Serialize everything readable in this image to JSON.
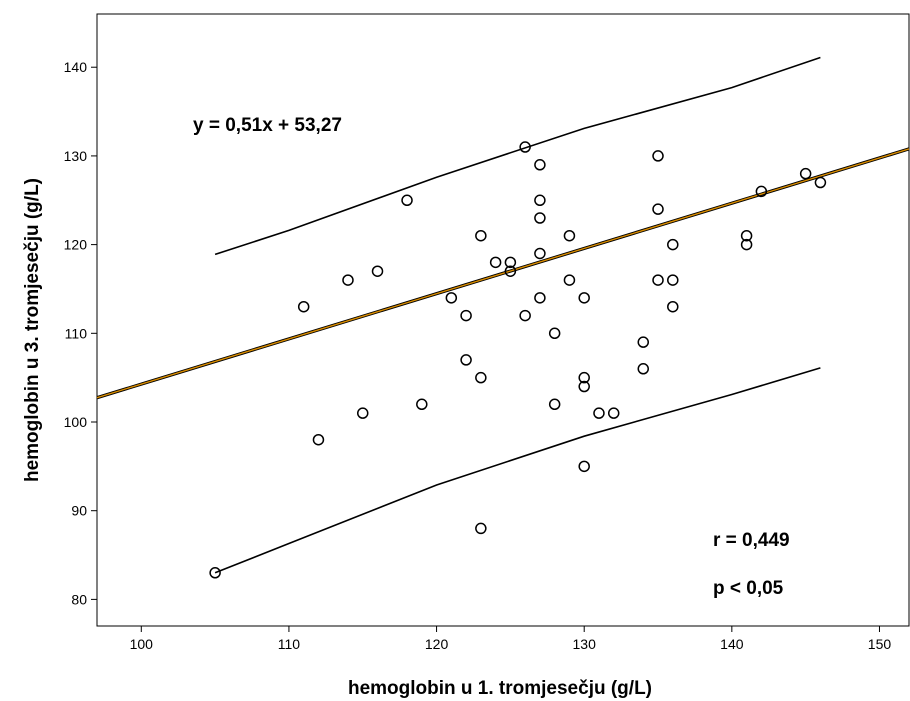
{
  "chart_data": {
    "type": "scatter",
    "title": "",
    "xlabel": "hemoglobin u 1. tromjesečju (g/L)",
    "ylabel": "hemoglobin u 3. tromjesečju (g/L)",
    "xlim": [
      97,
      152
    ],
    "ylim": [
      77,
      146
    ],
    "xticks": [
      100,
      110,
      120,
      130,
      140,
      150
    ],
    "yticks": [
      80,
      90,
      100,
      110,
      120,
      130,
      140
    ],
    "grid": false,
    "points": [
      [
        105,
        83
      ],
      [
        111,
        113
      ],
      [
        112,
        98
      ],
      [
        114,
        116
      ],
      [
        115,
        101
      ],
      [
        116,
        117
      ],
      [
        118,
        125
      ],
      [
        119,
        102
      ],
      [
        121,
        114
      ],
      [
        122,
        112
      ],
      [
        122,
        107
      ],
      [
        123,
        121
      ],
      [
        123,
        105
      ],
      [
        123,
        88
      ],
      [
        124,
        118
      ],
      [
        125,
        118
      ],
      [
        125,
        117
      ],
      [
        126,
        131
      ],
      [
        126,
        112
      ],
      [
        127,
        129
      ],
      [
        127,
        125
      ],
      [
        127,
        123
      ],
      [
        127,
        119
      ],
      [
        127,
        114
      ],
      [
        128,
        110
      ],
      [
        128,
        102
      ],
      [
        129,
        121
      ],
      [
        129,
        116
      ],
      [
        130,
        114
      ],
      [
        130,
        105
      ],
      [
        130,
        104
      ],
      [
        130,
        95
      ],
      [
        131,
        101
      ],
      [
        132,
        101
      ],
      [
        134,
        109
      ],
      [
        134,
        106
      ],
      [
        135,
        130
      ],
      [
        135,
        124
      ],
      [
        135,
        116
      ],
      [
        136,
        120
      ],
      [
        136,
        116
      ],
      [
        136,
        113
      ],
      [
        141,
        121
      ],
      [
        141,
        120
      ],
      [
        142,
        126
      ],
      [
        145,
        128
      ],
      [
        146,
        127
      ]
    ],
    "regression": {
      "slope": 0.51,
      "intercept": 53.27,
      "color": "#d98c00"
    },
    "upper_band": [
      [
        105,
        118.9
      ],
      [
        110,
        121.6
      ],
      [
        120,
        127.6
      ],
      [
        130,
        133.1
      ],
      [
        140,
        137.7
      ],
      [
        146,
        141.1
      ]
    ],
    "lower_band": [
      [
        105,
        83
      ],
      [
        110,
        86.3
      ],
      [
        120,
        92.9
      ],
      [
        130,
        98.4
      ],
      [
        140,
        103.1
      ],
      [
        146,
        106.1
      ]
    ],
    "annotations": {
      "equation": "y = 0,51x + 53,27",
      "r": "r = 0,449",
      "p": "p < 0,05"
    }
  }
}
